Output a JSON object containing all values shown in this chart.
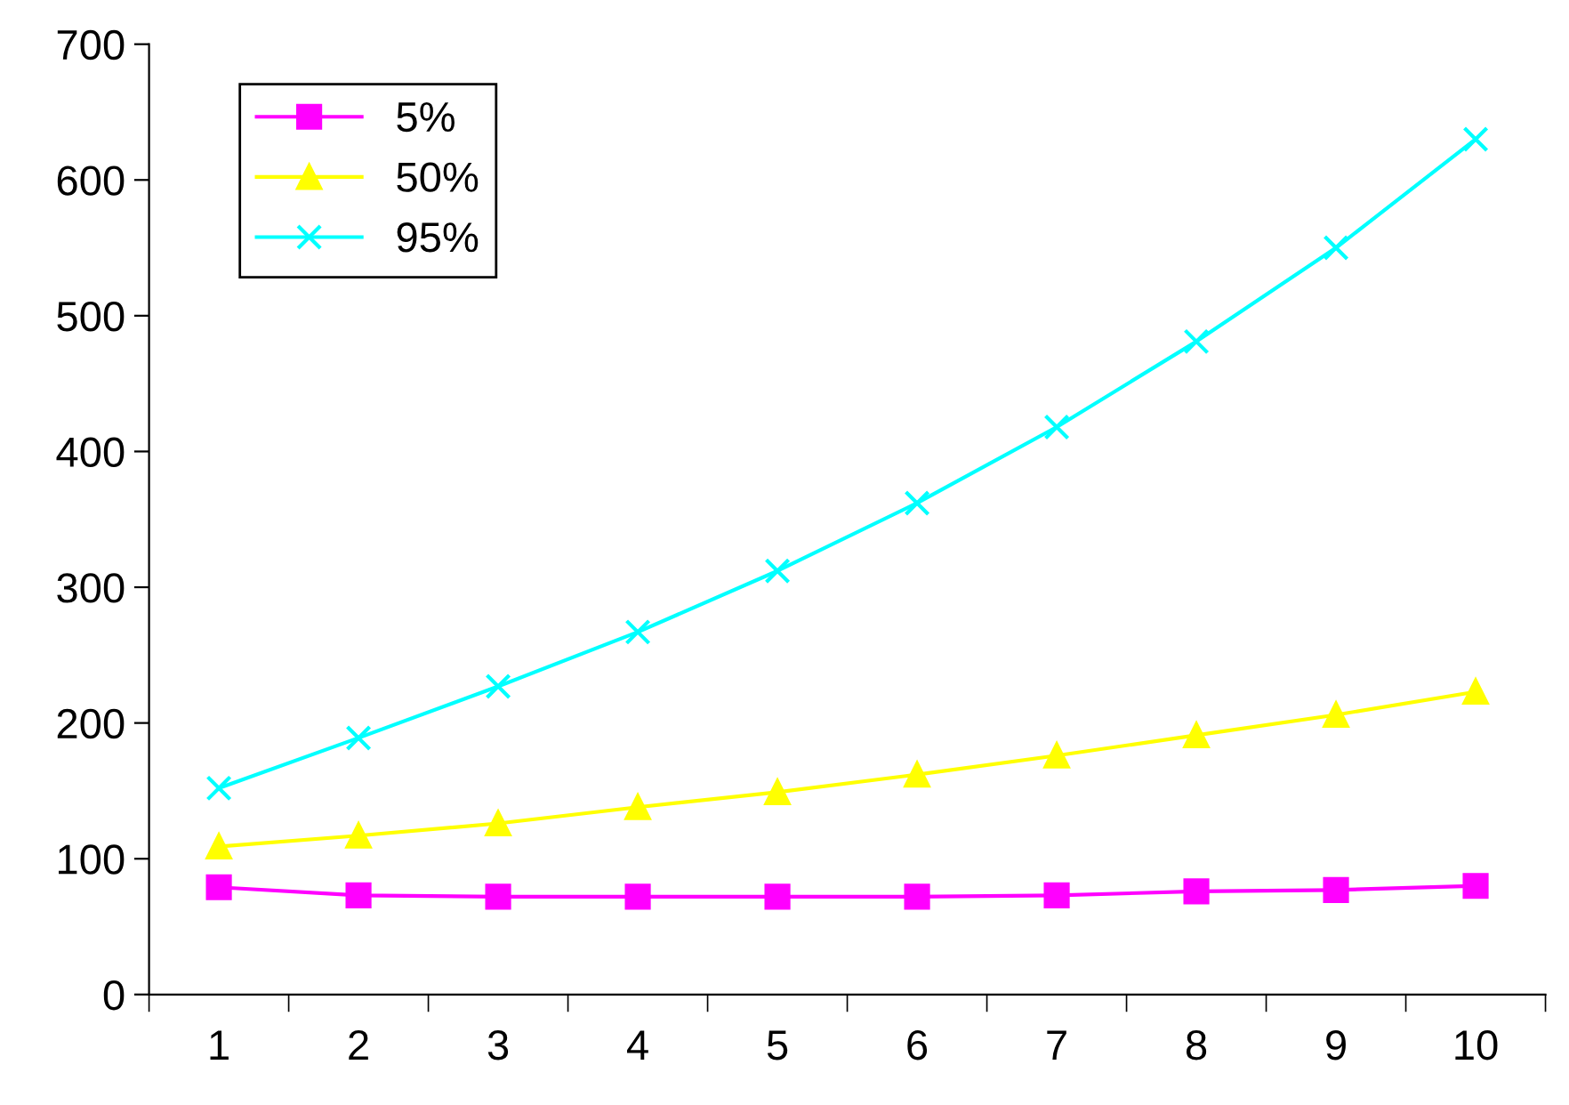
{
  "chart_data": {
    "type": "line",
    "categories": [
      "1",
      "2",
      "3",
      "4",
      "5",
      "6",
      "7",
      "8",
      "9",
      "10"
    ],
    "series": [
      {
        "name": "5%",
        "color": "#ff00ff",
        "marker": "square",
        "values": [
          79,
          73,
          72,
          72,
          72,
          72,
          73,
          76,
          77,
          80
        ]
      },
      {
        "name": "50%",
        "color": "#ffff00",
        "marker": "triangle",
        "values": [
          109,
          117,
          126,
          138,
          149,
          162,
          176,
          191,
          206,
          223
        ]
      },
      {
        "name": "95%",
        "color": "#00ffff",
        "marker": "cross",
        "values": [
          152,
          189,
          227,
          267,
          312,
          362,
          418,
          481,
          550,
          630
        ]
      }
    ],
    "ylim": [
      0,
      700
    ],
    "yticks": [
      0,
      100,
      200,
      300,
      400,
      500,
      600,
      700
    ],
    "grid": false,
    "legend": "top left",
    "line_style": "solid"
  }
}
